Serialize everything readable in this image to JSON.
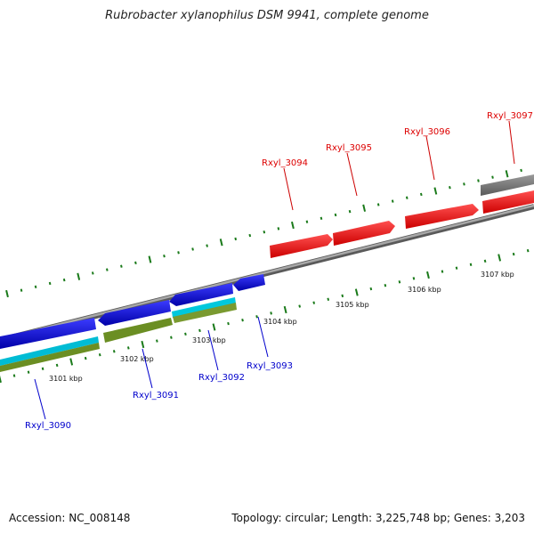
{
  "title": "Rubrobacter xylanophilus DSM 9941, complete genome",
  "footer": {
    "accession": "Accession: NC_008148",
    "summary": "Topology: circular; Length: 3,225,748 bp; Genes: 3,203"
  },
  "scale": {
    "labels": [
      "3101 kbp",
      "3102 kbp",
      "3103 kbp",
      "3104 kbp",
      "3105 kbp",
      "3106 kbp",
      "3107 kbp"
    ]
  },
  "genes_forward": [
    {
      "label": "Rxyl_3094"
    },
    {
      "label": "Rxyl_3095"
    },
    {
      "label": "Rxyl_3096"
    },
    {
      "label": "Rxyl_3097"
    }
  ],
  "genes_reverse": [
    {
      "label": "Rxyl_3090"
    },
    {
      "label": "Rxyl_3091"
    },
    {
      "label": "Rxyl_3092"
    },
    {
      "label": "Rxyl_3093"
    }
  ],
  "colors": {
    "forward_gene": "#ff0000",
    "reverse_gene": "#0000ff",
    "backbone": "#808080",
    "tick": "#1a7a1a",
    "cds_track": "#00bcd4",
    "feature_track": "#6b8e23",
    "other_feature": "#666666"
  }
}
